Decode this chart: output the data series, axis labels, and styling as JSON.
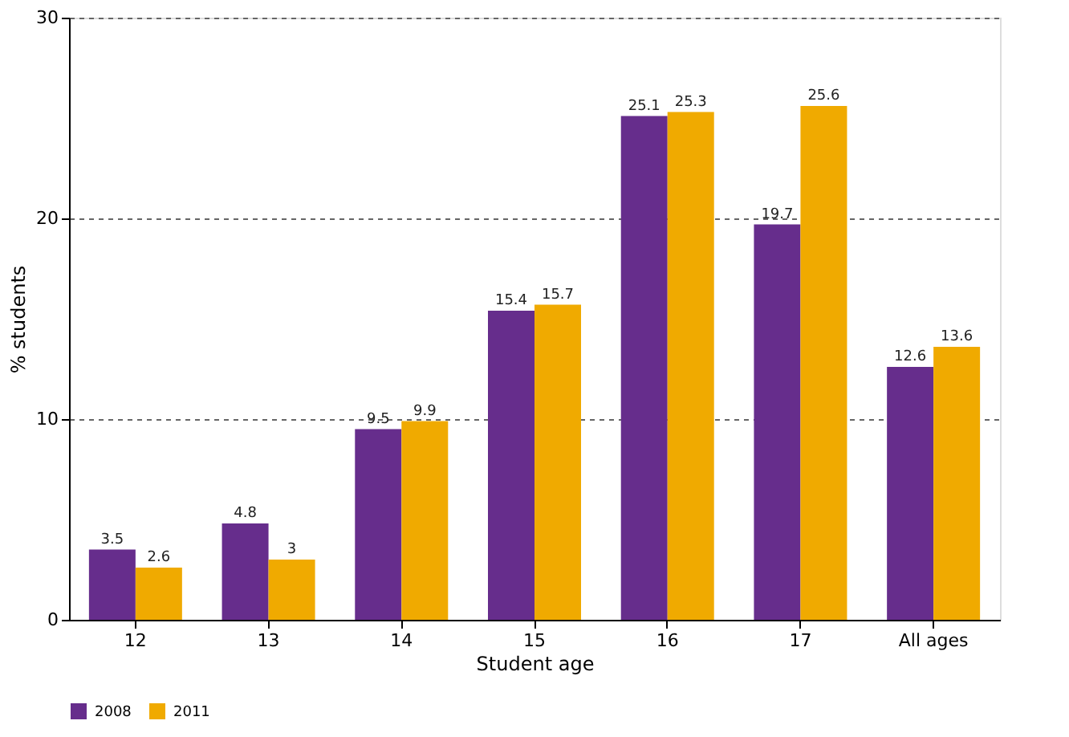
{
  "chart_data": {
    "type": "bar",
    "xlabel": "Student age",
    "ylabel": "% students",
    "categories": [
      "12",
      "13",
      "14",
      "15",
      "16",
      "17",
      "All ages"
    ],
    "series": [
      {
        "name": "2008",
        "color": "#662d8c",
        "values": [
          3.5,
          4.8,
          9.5,
          15.4,
          25.1,
          19.7,
          12.6
        ]
      },
      {
        "name": "2011",
        "color": "#f0aa00",
        "values": [
          2.6,
          3,
          9.9,
          15.7,
          25.3,
          25.6,
          13.6
        ]
      }
    ],
    "ylim": [
      0,
      30
    ],
    "yticks": [
      0,
      10,
      20,
      30
    ],
    "grid": "y",
    "legend": "bottom",
    "data_labels": true
  }
}
